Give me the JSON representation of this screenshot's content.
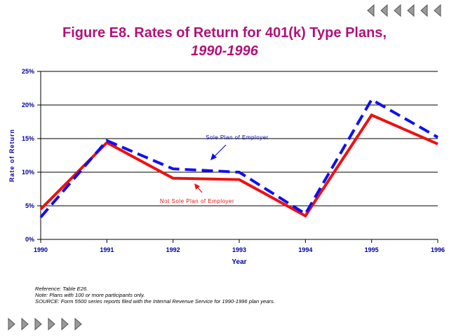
{
  "colors": {
    "title": "#b0127a",
    "axis_text": "#0000a0",
    "sole_plan": "#1010ee",
    "not_sole_plan": "#ee1010",
    "nav_fill": "#9a9a9a"
  },
  "header": {
    "title": "Figure E8.  Rates of Return for 401(k) Type Plans,",
    "subtitle": "1990-1996"
  },
  "navigation": {
    "top": [
      "back-arrow-icon",
      "back-arrow-icon",
      "back-arrow-icon",
      "back-arrow-icon",
      "back-arrow-icon",
      "back-arrow-icon"
    ],
    "bottom": [
      "forward-arrow-icon",
      "forward-arrow-icon",
      "forward-arrow-icon",
      "forward-arrow-icon",
      "forward-arrow-icon",
      "forward-arrow-icon"
    ]
  },
  "chart_data": {
    "type": "line",
    "title": "Figure E8.  Rates of Return for 401(k) Type Plans, 1990-1996",
    "xlabel": "Year",
    "ylabel": "Rate of Return",
    "x": [
      "1990",
      "1991",
      "1992",
      "1993",
      "1994",
      "1995",
      "1996"
    ],
    "y_ticks": [
      "0%",
      "5%",
      "10%",
      "15%",
      "20%",
      "25%"
    ],
    "ylim": [
      0,
      25
    ],
    "grid": true,
    "series": [
      {
        "name": "Sole Plan of Employer",
        "style": "dashed",
        "values": [
          3.3,
          14.7,
          10.5,
          10.0,
          3.8,
          20.8,
          15.2
        ]
      },
      {
        "name": "Not Sole Plan of Employer",
        "style": "solid",
        "values": [
          4.5,
          14.4,
          9.1,
          8.9,
          3.5,
          18.5,
          14.2
        ]
      }
    ],
    "annotations": [
      {
        "text": "Sole Plan of Employer",
        "series": 0
      },
      {
        "text": "Not Sole Plan of Employer",
        "series": 1
      }
    ]
  },
  "footnotes": {
    "reference": "Reference: Table E26.",
    "note": "Note: Plans with 100 or more participants only.",
    "source": "SOURCE: Form 5500 series reports filed with the Internal Revenue Service for 1990-1996 plan years."
  }
}
